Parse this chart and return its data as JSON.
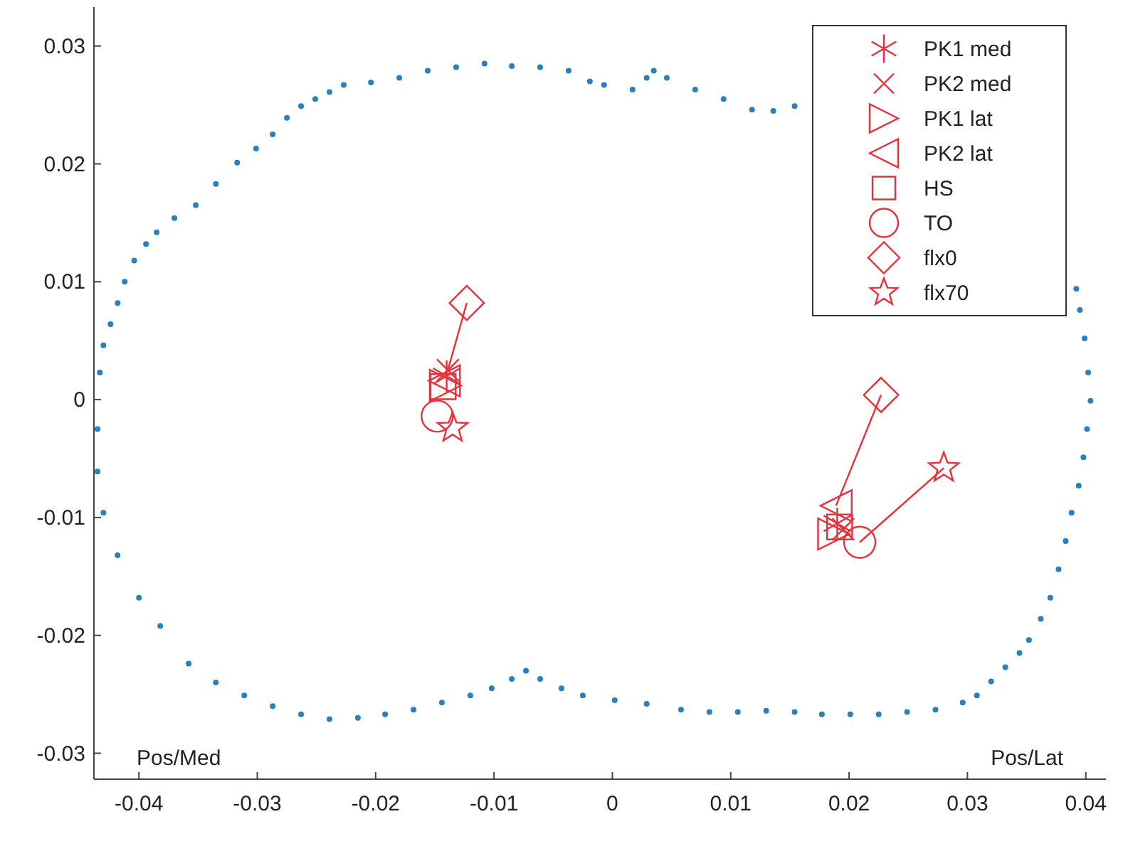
{
  "chart_data": {
    "type": "scatter",
    "xlim": [
      -0.0438,
      0.0417
    ],
    "ylim": [
      -0.0322,
      0.0333
    ],
    "xticks": [
      -0.04,
      -0.03,
      -0.02,
      -0.01,
      0,
      0.01,
      0.02,
      0.03,
      0.04
    ],
    "yticks": [
      -0.03,
      -0.02,
      -0.01,
      0,
      0.01,
      0.02,
      0.03
    ],
    "grid": false,
    "legend": "top right",
    "annotations": [
      "Pos/Med",
      "Pos/Lat"
    ],
    "series": [
      {
        "color": "#2a7fc0",
        "marker": "circle",
        "x": [
          -0.0435,
          -0.0433,
          -0.043,
          -0.0424,
          -0.0418,
          -0.0412,
          -0.0404,
          -0.0394,
          -0.0385,
          -0.037,
          -0.0352,
          -0.0335,
          -0.0317,
          -0.0301,
          -0.0287,
          -0.0275,
          -0.0263,
          -0.0251,
          -0.0239,
          -0.0227,
          -0.0204,
          -0.018,
          -0.0156,
          -0.0132,
          -0.0108,
          -0.0085,
          -0.0061,
          -0.0037,
          -0.0019,
          -0.0007,
          0.0017,
          0.0029,
          0.0035,
          0.0046,
          0.007,
          0.0094,
          0.0118,
          0.0136,
          0.0154,
          0.0392,
          0.0395,
          0.0399,
          0.0402,
          0.0404,
          0.0401,
          0.0398,
          0.0394,
          0.0388,
          0.0383,
          0.0377,
          0.037,
          0.0362,
          0.0352,
          0.0344,
          0.0332,
          0.032,
          0.0308,
          0.0296,
          0.0273,
          0.0249,
          0.0225,
          0.0201,
          0.0177,
          0.0154,
          0.013,
          0.0106,
          0.0082,
          0.0058,
          0.0029,
          0.0002,
          -0.0025,
          -0.0043,
          -0.0061,
          -0.0073,
          -0.0085,
          -0.0102,
          -0.012,
          -0.0144,
          -0.0168,
          -0.0192,
          -0.0215,
          -0.0239,
          -0.0263,
          -0.0287,
          -0.0311,
          -0.0335,
          -0.0358,
          -0.0382,
          -0.04,
          -0.0418,
          -0.043,
          -0.0435
        ],
        "values": [
          -0.0025,
          0.0023,
          0.0046,
          0.0064,
          0.0082,
          0.01,
          0.0118,
          0.0132,
          0.0142,
          0.0154,
          0.0165,
          0.0183,
          0.0201,
          0.0213,
          0.0225,
          0.0239,
          0.0249,
          0.0255,
          0.0261,
          0.0267,
          0.0269,
          0.0273,
          0.0279,
          0.0282,
          0.0285,
          0.0283,
          0.0282,
          0.0279,
          0.027,
          0.0267,
          0.0263,
          0.0273,
          0.0279,
          0.0273,
          0.0263,
          0.0255,
          0.0246,
          0.0245,
          0.0249,
          0.0094,
          0.0076,
          0.0052,
          0.0023,
          -0.0001,
          -0.0025,
          -0.0049,
          -0.0073,
          -0.0096,
          -0.012,
          -0.0144,
          -0.0168,
          -0.0186,
          -0.0204,
          -0.0215,
          -0.0227,
          -0.0239,
          -0.0251,
          -0.0257,
          -0.0263,
          -0.0265,
          -0.0267,
          -0.0267,
          -0.0267,
          -0.0265,
          -0.0264,
          -0.0265,
          -0.0265,
          -0.0263,
          -0.0258,
          -0.0255,
          -0.0251,
          -0.0245,
          -0.0237,
          -0.023,
          -0.0237,
          -0.0245,
          -0.0251,
          -0.0257,
          -0.0263,
          -0.0267,
          -0.027,
          -0.0271,
          -0.0267,
          -0.026,
          -0.0251,
          -0.024,
          -0.0224,
          -0.0192,
          -0.0168,
          -0.0132,
          -0.0096,
          -0.0061
        ]
      },
      {
        "type": "line",
        "color": "#e8303a",
        "marker": "none",
        "x": [
          -0.0123,
          -0.0139
        ],
        "values": [
          0.0082,
          0.0025
        ]
      },
      {
        "type": "line",
        "color": "#e8303a",
        "marker": "none",
        "x": [
          0.0227,
          0.0189
        ],
        "values": [
          0.0004,
          -0.009
        ]
      },
      {
        "type": "line",
        "color": "#e8303a",
        "marker": "none",
        "x": [
          0.0209,
          0.028
        ],
        "values": [
          -0.0121,
          -0.0058
        ]
      },
      {
        "name": "PK1 med",
        "color": "#e8303a",
        "marker": "cross",
        "x": [
          -0.014,
          0.019
        ],
        "values": [
          0.002,
          -0.0105
        ]
      },
      {
        "name": "PK2 med",
        "color": "#e8303a",
        "marker": "cross",
        "x": [
          -0.0139,
          0.0195
        ],
        "values": [
          0.0025,
          -0.011
        ]
      },
      {
        "name": "PK1 lat",
        "color": "#e8303a",
        "marker": "triangle",
        "x": [
          -0.0141,
          0.0187
        ],
        "values": [
          0.0012,
          -0.0114
        ]
      },
      {
        "name": "PK2 lat",
        "color": "#e8303a",
        "marker": "triangle",
        "x": [
          -0.0142,
          0.0189
        ],
        "values": [
          0.0016,
          -0.009
        ]
      },
      {
        "name": "HS",
        "color": "#e8303a",
        "marker": "square",
        "x": [
          -0.0143,
          0.0192
        ],
        "values": [
          0.0011,
          -0.0108
        ]
      },
      {
        "name": "TO",
        "color": "#e8303a",
        "marker": "circle",
        "x": [
          -0.0148,
          0.0209
        ],
        "values": [
          -0.0014,
          -0.0121
        ]
      },
      {
        "name": "flx0",
        "color": "#e8303a",
        "marker": "diamond",
        "x": [
          -0.0123,
          0.0227
        ],
        "values": [
          0.0082,
          0.0004
        ]
      },
      {
        "name": "flx70",
        "color": "#e8303a",
        "marker": "star",
        "x": [
          -0.0135,
          0.028
        ],
        "values": [
          -0.0024,
          -0.0058
        ]
      }
    ]
  }
}
